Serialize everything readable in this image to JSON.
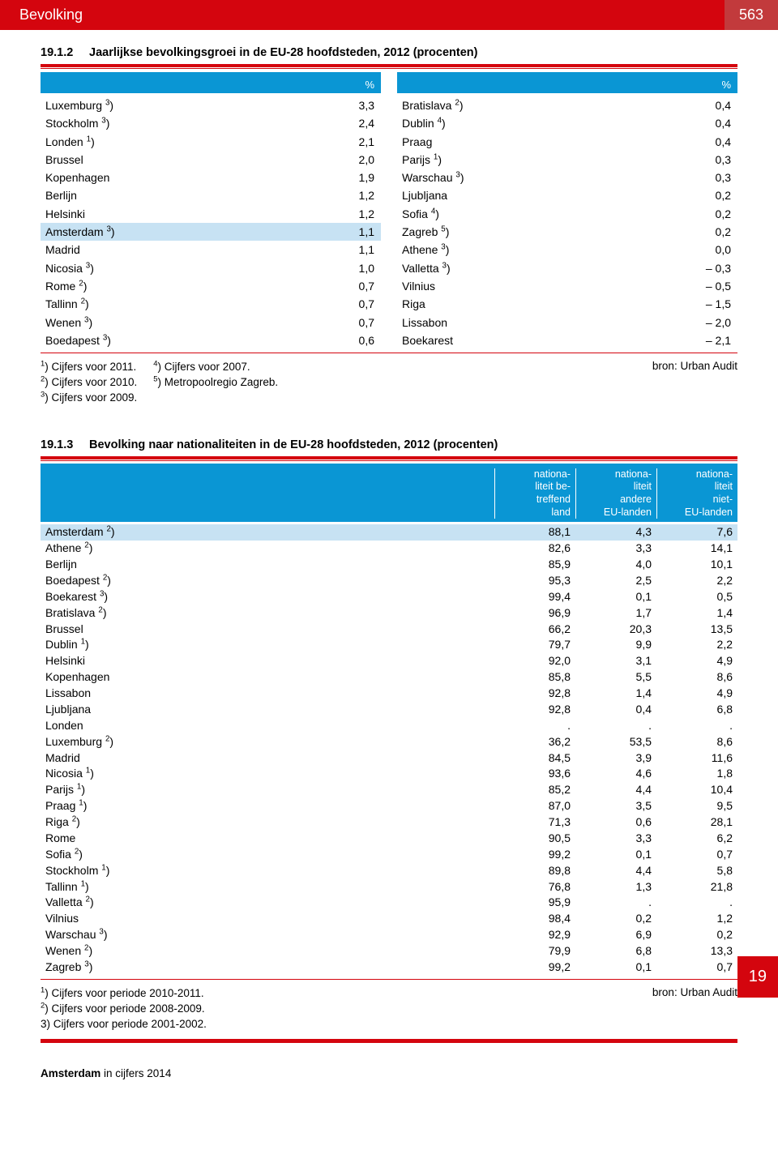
{
  "header": {
    "title": "Bevolking",
    "page_number": "563"
  },
  "side_tab": "19",
  "footer": {
    "text_bold": "Amsterdam",
    "text_rest": " in cijfers 2014"
  },
  "table_192": {
    "number": "19.1.2",
    "title": "Jaarlijkse bevolkingsgroei in de EU-28 hoofdsteden, 2012 (procenten)",
    "pct_symbol": "%",
    "left_rows": [
      {
        "label": "Luxemburg",
        "sup": "3",
        "val": "3,3"
      },
      {
        "label": "Stockholm",
        "sup": "3",
        "val": "2,4"
      },
      {
        "label": "Londen",
        "sup": "1",
        "val": "2,1"
      },
      {
        "label": "Brussel",
        "sup": "",
        "val": "2,0"
      },
      {
        "label": "Kopenhagen",
        "sup": "",
        "val": "1,9"
      },
      {
        "label": "Berlijn",
        "sup": "",
        "val": "1,2"
      },
      {
        "label": "Helsinki",
        "sup": "",
        "val": "1,2"
      },
      {
        "label": "Amsterdam",
        "sup": "3",
        "val": "1,1",
        "highlight": true
      },
      {
        "label": "Madrid",
        "sup": "",
        "val": "1,1"
      },
      {
        "label": "Nicosia",
        "sup": "3",
        "val": "1,0"
      },
      {
        "label": "Rome",
        "sup": "2",
        "val": "0,7"
      },
      {
        "label": "Tallinn",
        "sup": "2",
        "val": "0,7"
      },
      {
        "label": "Wenen",
        "sup": "3",
        "val": "0,7"
      },
      {
        "label": "Boedapest",
        "sup": "3",
        "val": "0,6"
      }
    ],
    "right_rows": [
      {
        "label": "Bratislava",
        "sup": "2",
        "val": "0,4"
      },
      {
        "label": "Dublin",
        "sup": "4",
        "val": "0,4"
      },
      {
        "label": "Praag",
        "sup": "",
        "val": "0,4"
      },
      {
        "label": "Parijs",
        "sup": "1",
        "val": "0,3"
      },
      {
        "label": "Warschau",
        "sup": "3",
        "val": "0,3"
      },
      {
        "label": "Ljubljana",
        "sup": "",
        "val": "0,2"
      },
      {
        "label": "Sofia",
        "sup": "4",
        "val": "0,2"
      },
      {
        "label": "Zagreb",
        "sup": "5",
        "val": "0,2"
      },
      {
        "label": "Athene",
        "sup": "3",
        "val": "0,0"
      },
      {
        "label": "Valletta",
        "sup": "3",
        "val": "– 0,3"
      },
      {
        "label": "Vilnius",
        "sup": "",
        "val": "– 0,5"
      },
      {
        "label": "Riga",
        "sup": "",
        "val": "– 1,5"
      },
      {
        "label": "Lissabon",
        "sup": "",
        "val": "– 2,0"
      },
      {
        "label": "Boekarest",
        "sup": "",
        "val": "– 2,1"
      }
    ],
    "footnotes_col1": [
      {
        "sup": "1",
        "text": "Cijfers voor 2011."
      },
      {
        "sup": "2",
        "text": "Cijfers voor 2010."
      },
      {
        "sup": "3",
        "text": "Cijfers voor 2009."
      }
    ],
    "footnotes_col2": [
      {
        "sup": "4",
        "text": "Cijfers voor 2007."
      },
      {
        "sup": "5",
        "text": "Metropoolregio Zagreb."
      }
    ],
    "source": "bron: Urban Audit"
  },
  "table_193": {
    "number": "19.1.3",
    "title": "Bevolking naar nationaliteiten in de EU-28 hoofdsteden, 2012 (procenten)",
    "headers": [
      "nationa-\nliteit be-\ntreffend\nland",
      "nationa-\nliteit\nandere\nEU-landen",
      "nationa-\nliteit\nniet-\nEU-landen"
    ],
    "rows": [
      {
        "label": "Amsterdam",
        "sup": "2",
        "c": [
          "88,1",
          "4,3",
          "7,6"
        ],
        "highlight": true
      },
      {
        "label": "Athene",
        "sup": "2",
        "c": [
          "82,6",
          "3,3",
          "14,1"
        ]
      },
      {
        "label": "Berlijn",
        "sup": "",
        "c": [
          "85,9",
          "4,0",
          "10,1"
        ]
      },
      {
        "label": "Boedapest",
        "sup": "2",
        "c": [
          "95,3",
          "2,5",
          "2,2"
        ]
      },
      {
        "label": "Boekarest",
        "sup": "3",
        "c": [
          "99,4",
          "0,1",
          "0,5"
        ]
      },
      {
        "label": "Bratislava",
        "sup": "2",
        "c": [
          "96,9",
          "1,7",
          "1,4"
        ]
      },
      {
        "label": "Brussel",
        "sup": "",
        "c": [
          "66,2",
          "20,3",
          "13,5"
        ]
      },
      {
        "label": "Dublin",
        "sup": "1",
        "c": [
          "79,7",
          "9,9",
          "2,2"
        ]
      },
      {
        "label": "Helsinki",
        "sup": "",
        "c": [
          "92,0",
          "3,1",
          "4,9"
        ]
      },
      {
        "label": "Kopenhagen",
        "sup": "",
        "c": [
          "85,8",
          "5,5",
          "8,6"
        ]
      },
      {
        "label": "Lissabon",
        "sup": "",
        "c": [
          "92,8",
          "1,4",
          "4,9"
        ]
      },
      {
        "label": "Ljubljana",
        "sup": "",
        "c": [
          "92,8",
          "0,4",
          "6,8"
        ]
      },
      {
        "label": "Londen",
        "sup": "",
        "c": [
          ".",
          ".",
          "."
        ]
      },
      {
        "label": "Luxemburg",
        "sup": "2",
        "c": [
          "36,2",
          "53,5",
          "8,6"
        ]
      },
      {
        "label": "Madrid",
        "sup": "",
        "c": [
          "84,5",
          "3,9",
          "11,6"
        ]
      },
      {
        "label": "Nicosia",
        "sup": "1",
        "c": [
          "93,6",
          "4,6",
          "1,8"
        ]
      },
      {
        "label": "Parijs",
        "sup": "1",
        "c": [
          "85,2",
          "4,4",
          "10,4"
        ]
      },
      {
        "label": "Praag",
        "sup": "1",
        "c": [
          "87,0",
          "3,5",
          "9,5"
        ]
      },
      {
        "label": "Riga",
        "sup": "2",
        "c": [
          "71,3",
          "0,6",
          "28,1"
        ]
      },
      {
        "label": "Rome",
        "sup": "",
        "c": [
          "90,5",
          "3,3",
          "6,2"
        ]
      },
      {
        "label": "Sofia",
        "sup": "2",
        "c": [
          "99,2",
          "0,1",
          "0,7"
        ]
      },
      {
        "label": "Stockholm",
        "sup": "1",
        "c": [
          "89,8",
          "4,4",
          "5,8"
        ]
      },
      {
        "label": "Tallinn",
        "sup": "1",
        "c": [
          "76,8",
          "1,3",
          "21,8"
        ]
      },
      {
        "label": "Valletta",
        "sup": "2",
        "c": [
          "95,9",
          ".",
          "."
        ]
      },
      {
        "label": "Vilnius",
        "sup": "",
        "c": [
          "98,4",
          "0,2",
          "1,2"
        ]
      },
      {
        "label": "Warschau",
        "sup": "3",
        "c": [
          "92,9",
          "6,9",
          "0,2"
        ]
      },
      {
        "label": "Wenen",
        "sup": "2",
        "c": [
          "79,9",
          "6,8",
          "13,3"
        ]
      },
      {
        "label": "Zagreb",
        "sup": "3",
        "c": [
          "99,2",
          "0,1",
          "0,7"
        ]
      }
    ],
    "footnotes": [
      {
        "sup": "1",
        "text": "Cijfers voor periode 2010-2011."
      },
      {
        "sup": "2",
        "text": "Cijfers voor periode 2008-2009."
      },
      {
        "sup": "3)",
        "text": "Cijfers voor periode 2001-2002.",
        "plain": true
      }
    ],
    "source": "bron: Urban Audit"
  },
  "colors": {
    "red": "#d4050e",
    "blue": "#0a96d4",
    "highlight": "#c7e2f3"
  }
}
